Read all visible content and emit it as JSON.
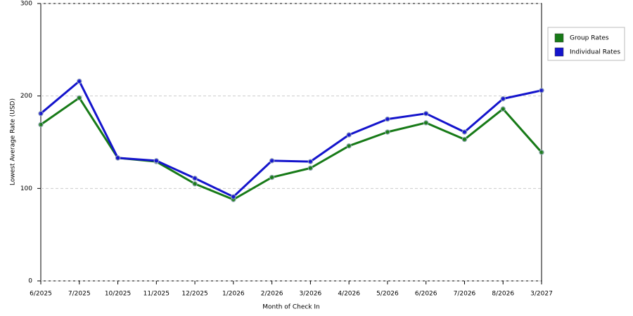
{
  "chart_data": {
    "type": "line",
    "x_label": "Month of Check In",
    "y_label": "Lowest Average Rate (USD)",
    "categories": [
      "6/2025",
      "7/2025",
      "10/2025",
      "11/2025",
      "12/2025",
      "1/2026",
      "2/2026",
      "3/2026",
      "4/2026",
      "5/2026",
      "6/2026",
      "7/2026",
      "8/2026",
      "3/2027"
    ],
    "series": [
      {
        "name": "Group Rates",
        "color": "#177a17",
        "values": [
          169,
          198,
          133,
          129,
          105,
          88,
          112,
          122,
          146,
          161,
          171,
          153,
          186,
          139
        ]
      },
      {
        "name": "Individual Rates",
        "color": "#1414cc",
        "values": [
          181,
          216,
          133,
          130,
          111,
          91,
          130,
          129,
          158,
          175,
          181,
          161,
          197,
          206
        ]
      }
    ],
    "ylim": [
      0,
      300
    ],
    "yticks": [
      0,
      100,
      200,
      300
    ],
    "grid": true,
    "legend": "right"
  }
}
